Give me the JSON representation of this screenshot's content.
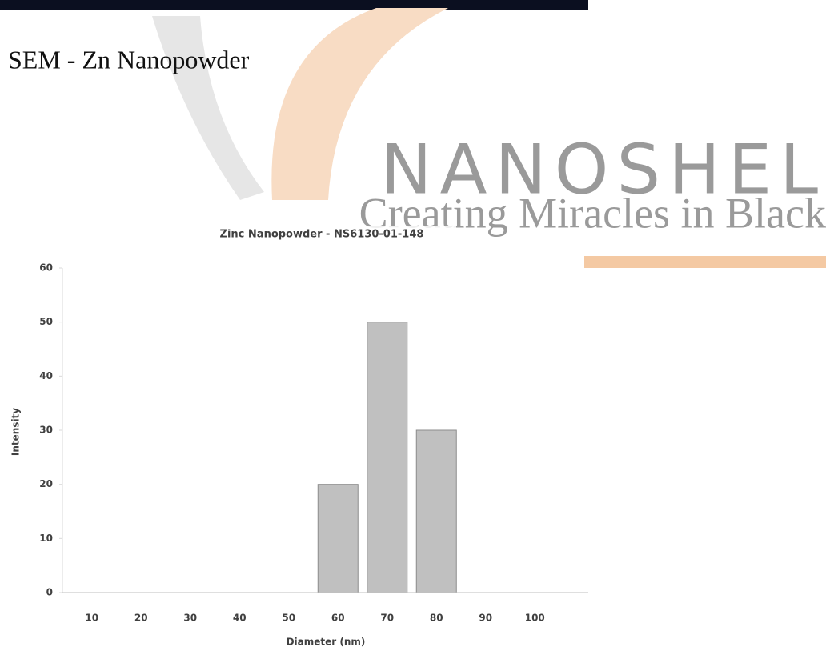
{
  "page_title": "SEM - Zn Nanopowder",
  "logo": {
    "name": "NANOSHEL",
    "tagline": "Creating Miracles in Black"
  },
  "chart_data": {
    "type": "bar",
    "title": "Zinc Nanopowder - NS6130-01-148",
    "x_label": "Diameter (nm)",
    "y_label": "Intensity",
    "categories": [
      "10",
      "20",
      "30",
      "40",
      "50",
      "60",
      "70",
      "80",
      "90",
      "100"
    ],
    "values": [
      0,
      0,
      0,
      0,
      0,
      20,
      50,
      30,
      0,
      0
    ],
    "color": "#c0c0c0",
    "ylim": [
      0,
      60
    ],
    "yticks": [
      0,
      10,
      20,
      30,
      40,
      50,
      60
    ],
    "grid": false
  }
}
